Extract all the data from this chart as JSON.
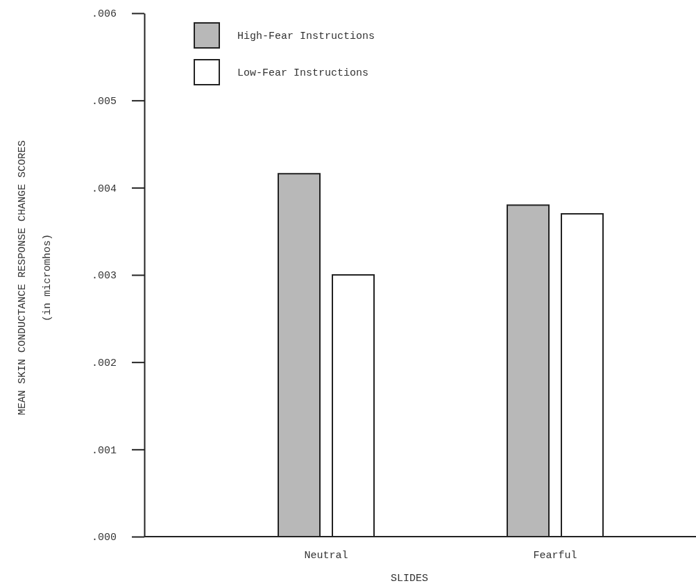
{
  "chart_data": {
    "type": "bar",
    "xlabel": "SLIDES",
    "ylabel": "MEAN SKIN CONDUCTANCE RESPONSE CHANGE SCORES\n(in micromhos)",
    "categories": [
      "Neutral",
      "Fearful"
    ],
    "series": [
      {
        "name": "High-Fear Instructions",
        "color": "#b8b8b8",
        "values": [
          0.00416,
          0.0038
        ]
      },
      {
        "name": "Low-Fear Instructions",
        "color": "#ffffff",
        "values": [
          0.003,
          0.0037
        ]
      }
    ],
    "ylim": [
      0,
      0.006
    ],
    "yticks": [
      {
        "value": 0,
        "label": ".000"
      },
      {
        "value": 0.001,
        "label": ".001"
      },
      {
        "value": 0.002,
        "label": ".002"
      },
      {
        "value": 0.003,
        "label": ".003"
      },
      {
        "value": 0.004,
        "label": ".004"
      },
      {
        "value": 0.005,
        "label": ".005"
      },
      {
        "value": 0.006,
        "label": ".006"
      }
    ],
    "grid": false,
    "legend": "top left"
  }
}
